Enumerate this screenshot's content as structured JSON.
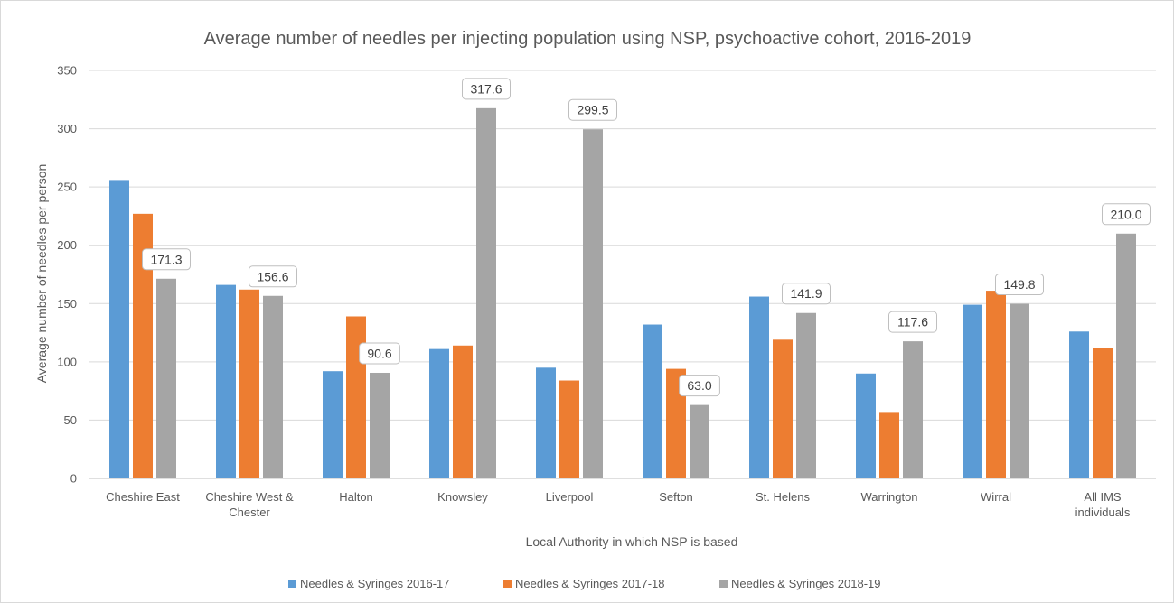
{
  "chart_data": {
    "type": "bar",
    "title": "Average number of needles per injecting population using NSP, psychoactive cohort, 2016-2019",
    "xlabel": "Local Authority in which NSP is based",
    "ylabel": "Average number of needles per person",
    "ylim": [
      0,
      350
    ],
    "yticks": [
      0,
      50,
      100,
      150,
      200,
      250,
      300,
      350
    ],
    "grid": true,
    "legend_position": "bottom",
    "categories": [
      [
        "Cheshire East"
      ],
      [
        "Cheshire West &",
        "Chester"
      ],
      [
        "Halton"
      ],
      [
        "Knowsley"
      ],
      [
        "Liverpool"
      ],
      [
        "Sefton"
      ],
      [
        "St. Helens"
      ],
      [
        "Warrington"
      ],
      [
        "Wirral"
      ],
      [
        "All IMS",
        "individuals"
      ]
    ],
    "series": [
      {
        "name": "Needles & Syringes 2016-17",
        "color": "#5b9bd5",
        "values": [
          256,
          166,
          92,
          111,
          95,
          132,
          156,
          90,
          149,
          126
        ]
      },
      {
        "name": "Needles & Syringes 2017-18",
        "color": "#ed7d31",
        "values": [
          227,
          162,
          139,
          114,
          84,
          94,
          119,
          57,
          161,
          112
        ]
      },
      {
        "name": "Needles & Syringes 2018-19",
        "color": "#a5a5a5",
        "values": [
          171.3,
          156.6,
          90.6,
          317.6,
          299.5,
          63.0,
          141.9,
          117.6,
          149.8,
          210.0
        ],
        "data_labels": [
          "171.3",
          "156.6",
          "90.6",
          "317.6",
          "299.5",
          "63.0",
          "141.9",
          "117.6",
          "149.8",
          "210.0"
        ]
      }
    ],
    "colors": {
      "grid": "#d9d9d9",
      "axis": "#bfbfbf",
      "text": "#595959"
    }
  }
}
